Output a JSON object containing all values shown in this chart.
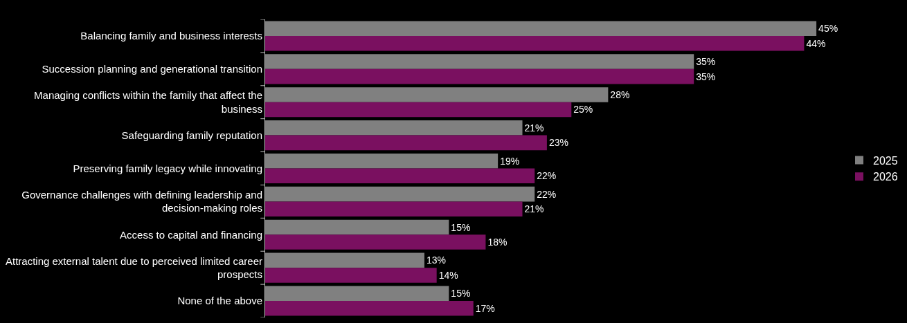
{
  "chart_data": {
    "type": "bar",
    "orientation": "horizontal",
    "categories": [
      "Balancing family and business interests",
      "Succession planning and generational transition",
      "Managing conflicts within the family that affect the business",
      "Safeguarding family reputation",
      "Preserving family legacy while innovating",
      "Governance challenges with defining leadership and decision-making roles",
      "Access to capital and financing",
      "Attracting external talent due to perceived limited career prospects",
      "None of the above"
    ],
    "series": [
      {
        "name": "2025",
        "color": "#808080",
        "values": [
          45,
          35,
          28,
          21,
          19,
          22,
          15,
          13,
          15
        ],
        "value_labels": [
          "45%",
          "35%",
          "28%",
          "21%",
          "19%",
          "22%",
          "15%",
          "13%",
          "15%"
        ]
      },
      {
        "name": "2026",
        "color": "#7a1060",
        "values": [
          44,
          35,
          25,
          23,
          22,
          21,
          18,
          14,
          17
        ],
        "value_labels": [
          "44%",
          "35%",
          "25%",
          "23%",
          "22%",
          "21%",
          "18%",
          "14%",
          "17%"
        ]
      }
    ],
    "tick_labels": "y",
    "grid": false,
    "legend": "right"
  }
}
